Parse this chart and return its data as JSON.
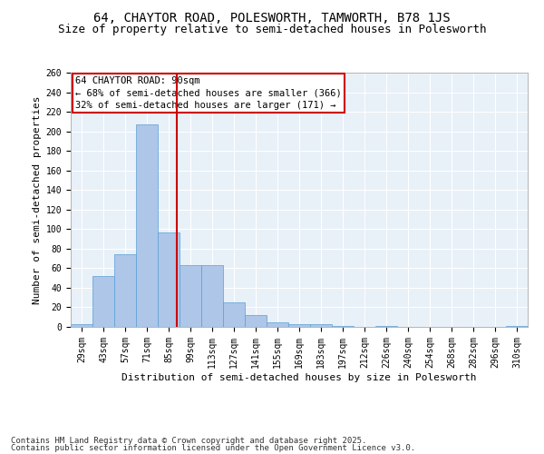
{
  "title1": "64, CHAYTOR ROAD, POLESWORTH, TAMWORTH, B78 1JS",
  "title2": "Size of property relative to semi-detached houses in Polesworth",
  "xlabel": "Distribution of semi-detached houses by size in Polesworth",
  "ylabel": "Number of semi-detached properties",
  "categories": [
    "29sqm",
    "43sqm",
    "57sqm",
    "71sqm",
    "85sqm",
    "99sqm",
    "113sqm",
    "127sqm",
    "141sqm",
    "155sqm",
    "169sqm",
    "183sqm",
    "197sqm",
    "212sqm",
    "226sqm",
    "240sqm",
    "254sqm",
    "268sqm",
    "282sqm",
    "296sqm",
    "310sqm"
  ],
  "values": [
    3,
    52,
    74,
    207,
    97,
    63,
    63,
    25,
    12,
    5,
    3,
    3,
    1,
    0,
    1,
    0,
    0,
    0,
    0,
    0,
    1
  ],
  "bar_color": "#aec6e8",
  "bar_edgecolor": "#5a9fd4",
  "annotation_title": "64 CHAYTOR ROAD: 90sqm",
  "annotation_line1": "← 68% of semi-detached houses are smaller (366)",
  "annotation_line2": "32% of semi-detached houses are larger (171) →",
  "annotation_box_color": "#cc0000",
  "vline_color": "#cc0000",
  "ylim": [
    0,
    260
  ],
  "yticks": [
    0,
    20,
    40,
    60,
    80,
    100,
    120,
    140,
    160,
    180,
    200,
    220,
    240,
    260
  ],
  "bg_color": "#e8f0f8",
  "grid_color": "#ffffff",
  "footer1": "Contains HM Land Registry data © Crown copyright and database right 2025.",
  "footer2": "Contains public sector information licensed under the Open Government Licence v3.0.",
  "title_fontsize": 10,
  "subtitle_fontsize": 9,
  "axis_label_fontsize": 8,
  "tick_fontsize": 7,
  "annotation_fontsize": 7.5
}
